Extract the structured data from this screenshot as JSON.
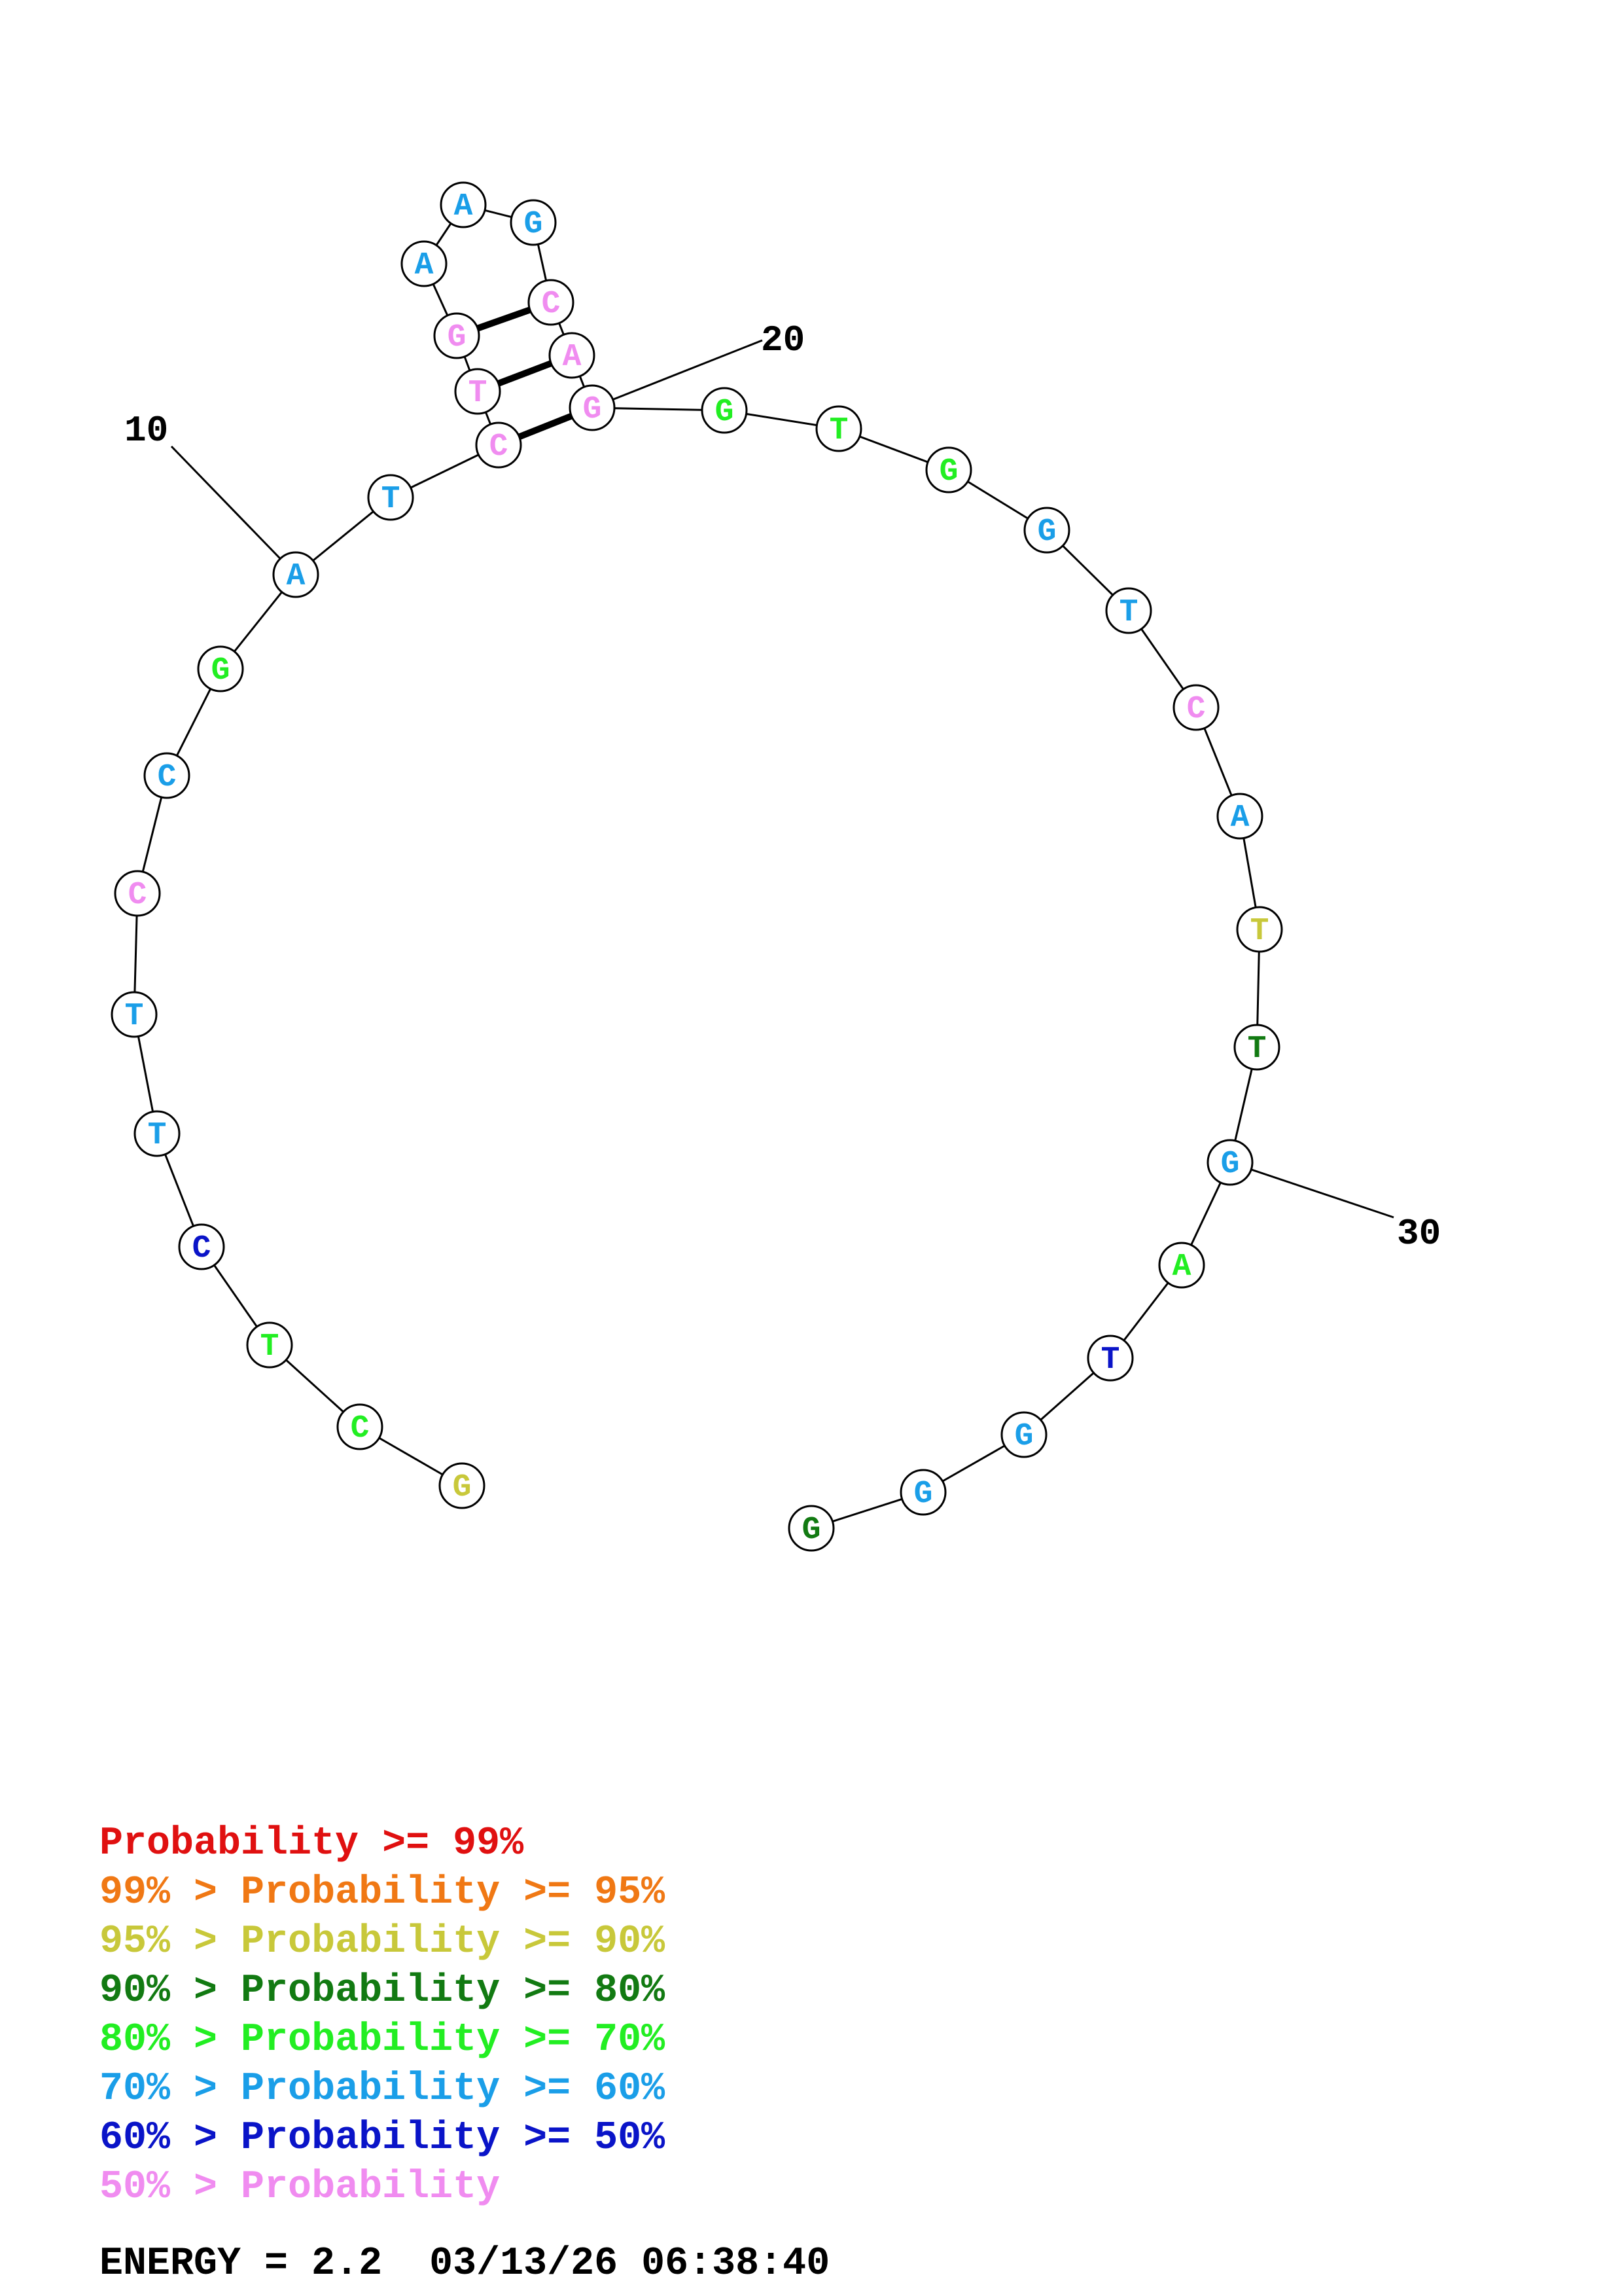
{
  "structure": {
    "nucleotides": [
      {
        "index": 1,
        "base": "G",
        "color": "#c8c83a"
      },
      {
        "index": 2,
        "base": "C",
        "color": "#22ee22"
      },
      {
        "index": 3,
        "base": "T",
        "color": "#22ee22"
      },
      {
        "index": 4,
        "base": "C",
        "color": "#0a14c8"
      },
      {
        "index": 5,
        "base": "T",
        "color": "#1a9ee8"
      },
      {
        "index": 6,
        "base": "T",
        "color": "#1a9ee8"
      },
      {
        "index": 7,
        "base": "C",
        "color": "#f08cf0"
      },
      {
        "index": 8,
        "base": "C",
        "color": "#1a9ee8"
      },
      {
        "index": 9,
        "base": "G",
        "color": "#22ee22"
      },
      {
        "index": 10,
        "base": "A",
        "color": "#1a9ee8"
      },
      {
        "index": 11,
        "base": "T",
        "color": "#1a9ee8"
      },
      {
        "index": 12,
        "base": "C",
        "color": "#f08cf0"
      },
      {
        "index": 13,
        "base": "T",
        "color": "#f08cf0"
      },
      {
        "index": 14,
        "base": "G",
        "color": "#f08cf0"
      },
      {
        "index": 15,
        "base": "A",
        "color": "#1a9ee8"
      },
      {
        "index": 16,
        "base": "A",
        "color": "#1a9ee8"
      },
      {
        "index": 17,
        "base": "G",
        "color": "#1a9ee8"
      },
      {
        "index": 18,
        "base": "C",
        "color": "#f08cf0"
      },
      {
        "index": 19,
        "base": "A",
        "color": "#f08cf0"
      },
      {
        "index": 20,
        "base": "G",
        "color": "#f08cf0"
      },
      {
        "index": 21,
        "base": "G",
        "color": "#22ee22"
      },
      {
        "index": 22,
        "base": "T",
        "color": "#22ee22"
      },
      {
        "index": 23,
        "base": "G",
        "color": "#22ee22"
      },
      {
        "index": 24,
        "base": "G",
        "color": "#1a9ee8"
      },
      {
        "index": 25,
        "base": "T",
        "color": "#1a9ee8"
      },
      {
        "index": 26,
        "base": "C",
        "color": "#f08cf0"
      },
      {
        "index": 27,
        "base": "A",
        "color": "#1a9ee8"
      },
      {
        "index": 28,
        "base": "T",
        "color": "#c8c83a"
      },
      {
        "index": 29,
        "base": "T",
        "color": "#127a12"
      },
      {
        "index": 30,
        "base": "G",
        "color": "#1a9ee8"
      },
      {
        "index": 31,
        "base": "A",
        "color": "#22ee22"
      },
      {
        "index": 32,
        "base": "T",
        "color": "#0a14c8"
      },
      {
        "index": 33,
        "base": "G",
        "color": "#1a9ee8"
      },
      {
        "index": 34,
        "base": "G",
        "color": "#1a9ee8"
      },
      {
        "index": 35,
        "base": "G",
        "color": "#127a12"
      }
    ],
    "pairs": [
      [
        12,
        20
      ],
      [
        13,
        19
      ],
      [
        14,
        18
      ]
    ],
    "index_labels": [
      {
        "text": "10",
        "index": 10
      },
      {
        "text": "20",
        "index": 20
      },
      {
        "text": "30",
        "index": 30
      }
    ]
  },
  "legend": [
    {
      "prefix": "",
      "text": "Probability >= 99%",
      "color": "#e01010"
    },
    {
      "prefix": "99% > ",
      "text": "Probability >= 95%",
      "color": "#f07814"
    },
    {
      "prefix": "95% > ",
      "text": "Probability >= 90%",
      "color": "#c8c83a"
    },
    {
      "prefix": "90% > ",
      "text": "Probability >= 80%",
      "color": "#127a12"
    },
    {
      "prefix": "80% > ",
      "text": "Probability >= 70%",
      "color": "#22ee22"
    },
    {
      "prefix": "70% > ",
      "text": "Probability >= 60%",
      "color": "#1a9ee8"
    },
    {
      "prefix": "60% > ",
      "text": "Probability >= 50%",
      "color": "#0a14c8"
    },
    {
      "prefix": "50% > ",
      "text": "Probability",
      "color": "#f08cf0"
    }
  ],
  "footer": {
    "energy": "ENERGY = 2.2",
    "timestamp": "03/13/26 06:38:40"
  }
}
